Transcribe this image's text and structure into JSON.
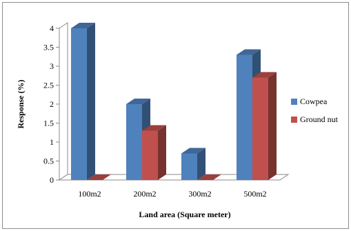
{
  "chart_data": {
    "type": "bar",
    "categories": [
      "100m2",
      "200m2",
      "300m2",
      "500m2"
    ],
    "series": [
      {
        "name": "Cowpea",
        "values": [
          4.0,
          2.0,
          0.7,
          3.3
        ],
        "color": "#4F81BD"
      },
      {
        "name": "Ground nut",
        "values": [
          0.0,
          1.3,
          0.0,
          2.7
        ],
        "color": "#C0504D"
      }
    ],
    "title": "",
    "xlabel": "Land area (Square meter)",
    "ylabel": "Response (%)",
    "ylim": [
      0,
      4
    ],
    "yticks": [
      "0",
      "0.5",
      "1",
      "1.5",
      "2",
      "2.5",
      "3",
      "3.5",
      "4"
    ],
    "grid": false,
    "legend_position": "right"
  }
}
